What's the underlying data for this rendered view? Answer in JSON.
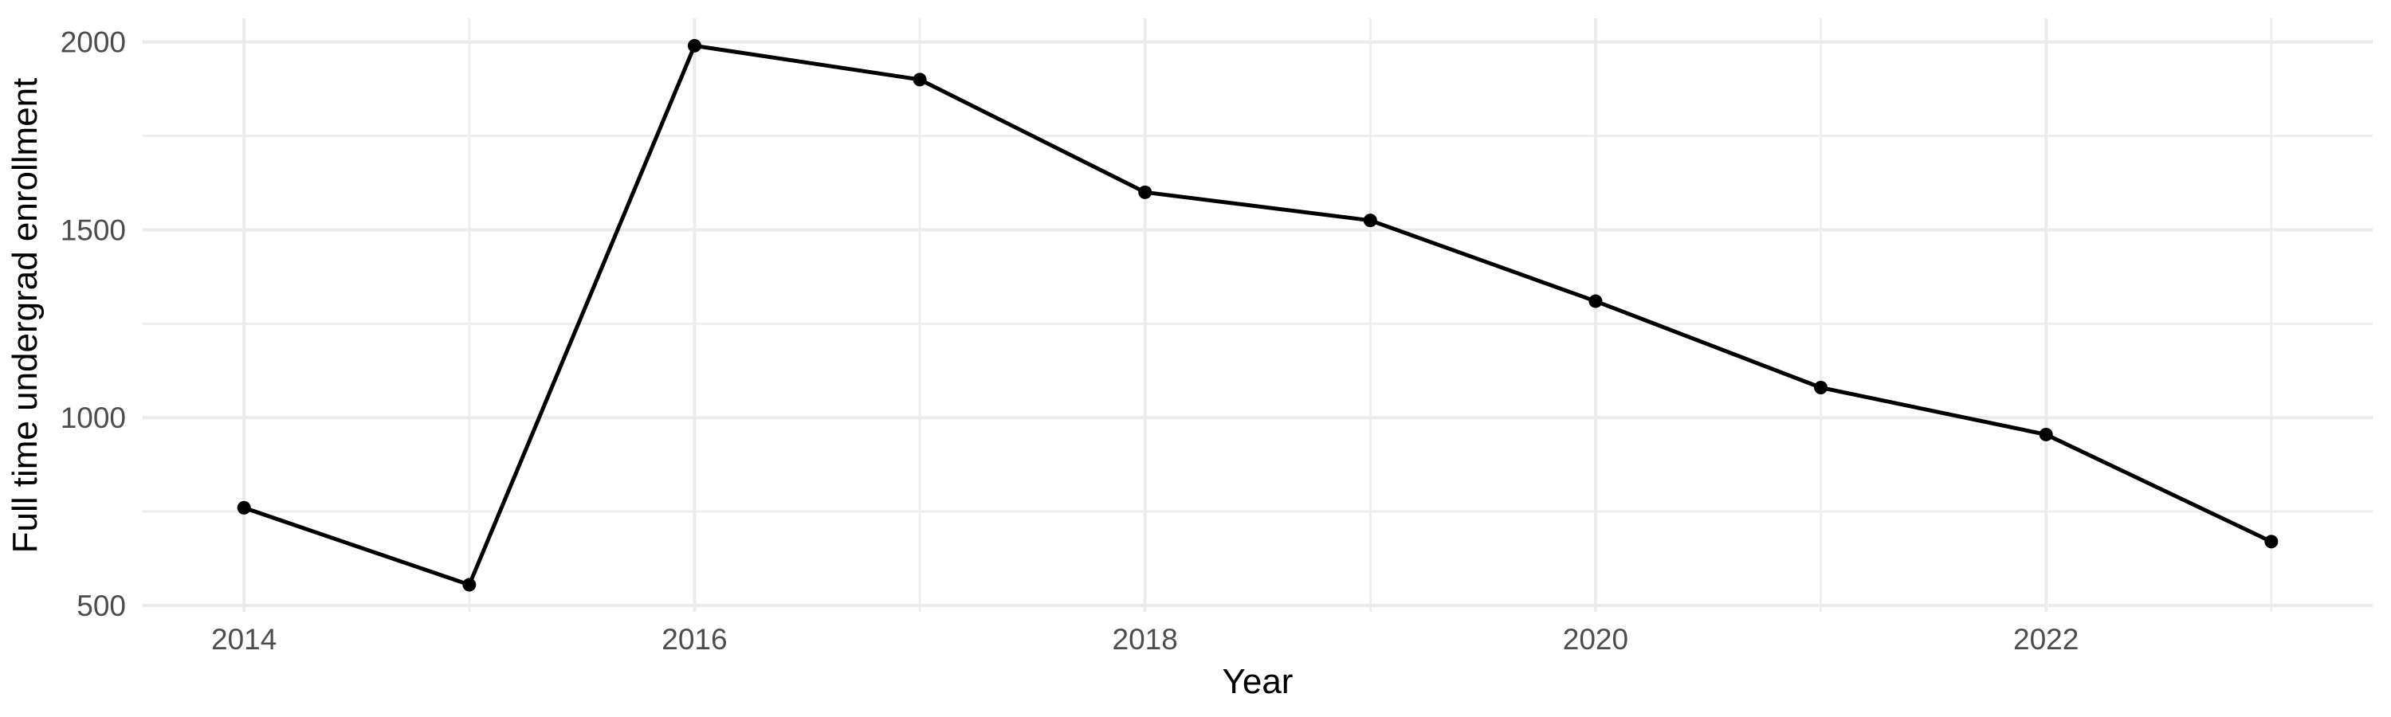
{
  "chart_data": {
    "type": "line",
    "title": "",
    "xlabel": "Year",
    "ylabel": "Full time undergrad enrollment",
    "x": [
      2014,
      2015,
      2016,
      2017,
      2018,
      2019,
      2020,
      2021,
      2022,
      2023
    ],
    "series": [
      {
        "name": "Full time undergrad enrollment",
        "values": [
          760,
          555,
          1990,
          1900,
          1600,
          1525,
          1310,
          1080,
          955,
          670
        ]
      }
    ],
    "x_ticks": [
      2014,
      2016,
      2018,
      2020,
      2022
    ],
    "x_minor_gridlines": [
      2015,
      2017,
      2019,
      2021,
      2023
    ],
    "y_ticks": [
      500,
      1000,
      1500,
      2000
    ],
    "y_minor_gridlines": [
      750,
      1250,
      1750
    ],
    "xlim": [
      2013.55,
      2023.45
    ],
    "ylim": [
      483,
      2063
    ],
    "grid": true,
    "legend_position": "none",
    "point_marker": "filled-circle",
    "colors": {
      "line": "#000000",
      "point": "#000000",
      "grid_major": "#EBEBEB",
      "grid_minor": "#EEEEEE",
      "tick_label": "#4D4D4D",
      "axis_title": "#000000",
      "background": "#FFFFFF"
    }
  }
}
